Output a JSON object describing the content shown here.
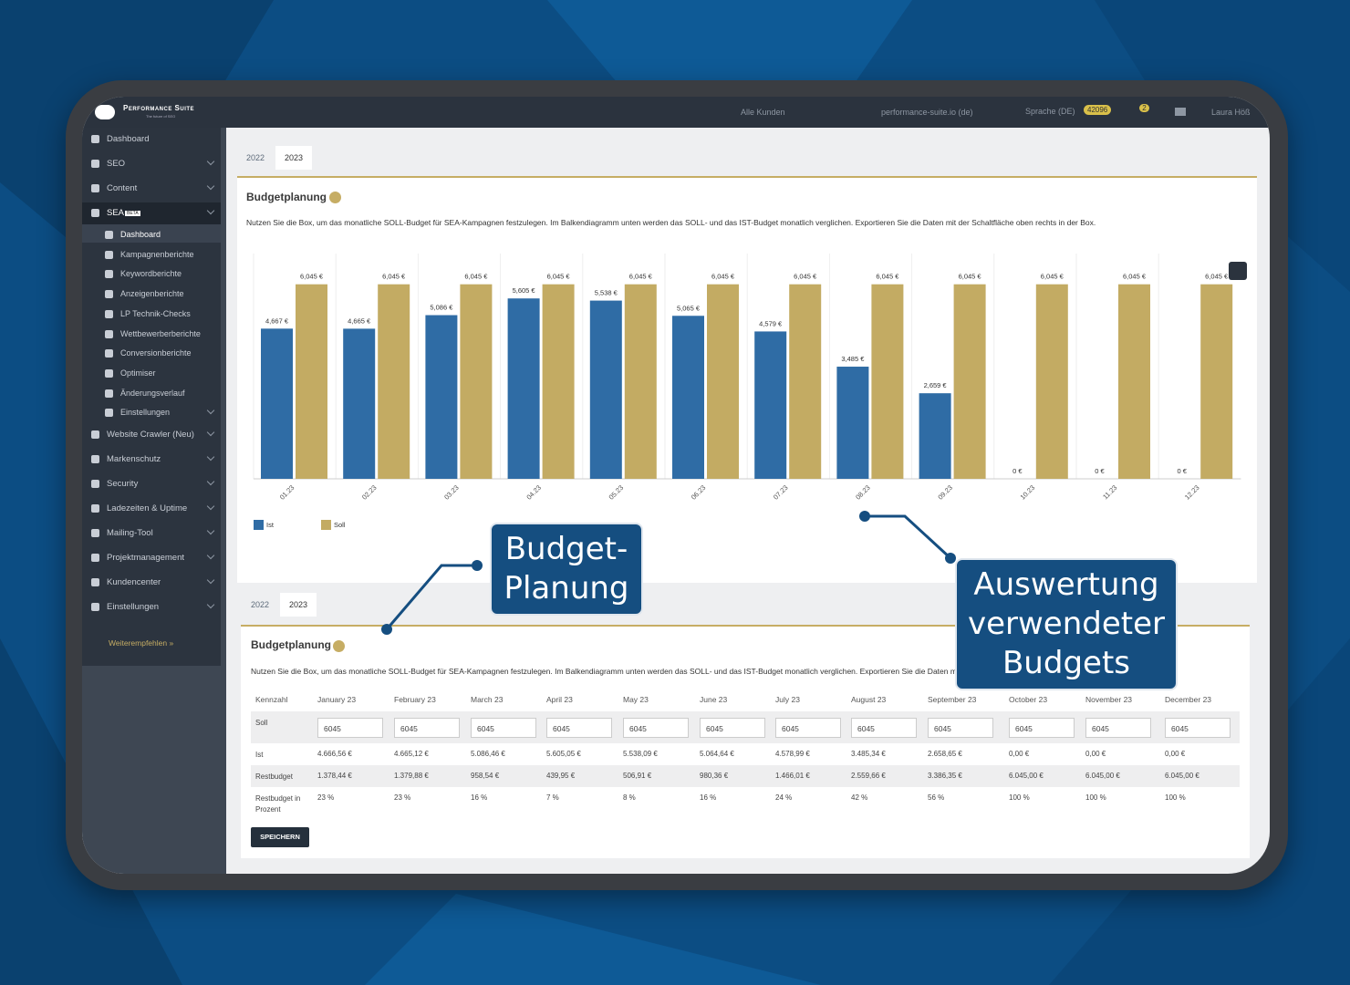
{
  "topbar": {
    "brand": "Performance Suite",
    "tagline": "The future of SEO",
    "customer": "Alle Kunden",
    "domain": "performance-suite.io (de)",
    "language": "Sprache (DE)",
    "credits": "42096",
    "notifications": "2",
    "user": "Laura Höß"
  },
  "sidebar": {
    "main_items": [
      "Dashboard",
      "SEO",
      "Content",
      "SEA"
    ],
    "sea_badge": "BETA",
    "sub_items": [
      "Dashboard",
      "Kampagnenberichte",
      "Keywordberichte",
      "Anzeigenberichte",
      "LP Technik-Checks",
      "Wettbewerberberichte",
      "Conversionberichte",
      "Optimiser",
      "Änderungsverlauf",
      "Einstellungen"
    ],
    "more_items": [
      "Website Crawler (Neu)",
      "Markenschutz",
      "Security",
      "Ladezeiten & Uptime",
      "Mailing-Tool",
      "Projektmanagement",
      "Kundencenter",
      "Einstellungen"
    ],
    "referral": "Weiterempfehlen »"
  },
  "chart_section": {
    "tabs": [
      "2022",
      "2023"
    ],
    "title": "Budgetplanung",
    "description": "Nutzen Sie die Box, um das monatliche SOLL-Budget für SEA-Kampagnen festzulegen. Im Balkendiagramm unten werden das SOLL- und das IST-Budget monatlich verglichen. Exportieren Sie die Daten mit der Schaltfläche oben rechts in der Box."
  },
  "chart_data": {
    "type": "bar",
    "categories": [
      "01.23",
      "02.23",
      "03.23",
      "04.23",
      "05.23",
      "06.23",
      "07.23",
      "08.23",
      "09.23",
      "10.23",
      "11.23",
      "12.23"
    ],
    "series": [
      {
        "name": "Ist",
        "color": "#2f6ca5",
        "values": [
          4667,
          4665,
          5086,
          5605,
          5538,
          5065,
          4579,
          3485,
          2659,
          0,
          0,
          0
        ],
        "value_labels": [
          "4,667 €",
          "4,665 €",
          "5,086 €",
          "5,605 €",
          "5,538 €",
          "5,065 €",
          "4,579 €",
          "3,485 €",
          "2,659 €",
          "0 €",
          "0 €",
          "0 €"
        ]
      },
      {
        "name": "Soll",
        "color": "#c3ab63",
        "values": [
          6045,
          6045,
          6045,
          6045,
          6045,
          6045,
          6045,
          6045,
          6045,
          6045,
          6045,
          6045
        ],
        "value_labels": [
          "6,045 €",
          "6,045 €",
          "6,045 €",
          "6,045 €",
          "6,045 €",
          "6,045 €",
          "6,045 €",
          "6,045 €",
          "6,045 €",
          "6,045 €",
          "6,045 €",
          "6,045 €"
        ]
      }
    ],
    "ylim": [
      0,
      7000
    ],
    "legend": "bottom-left"
  },
  "table_section": {
    "tabs": [
      "2022",
      "2023"
    ],
    "title": "Budgetplanung",
    "description": "Nutzen Sie die Box, um das monatliche SOLL-Budget für SEA-Kampagnen festzulegen. Im Balkendiagramm unten werden das SOLL- und das IST-Budget monatlich verglichen. Exportieren Sie die Daten mit der Schaltfläche oben rechts in der Box.",
    "table": {
      "header": [
        "Kennzahl",
        "January 23",
        "February 23",
        "March 23",
        "April 23",
        "May 23",
        "June 23",
        "July 23",
        "August 23",
        "September 23",
        "October 23",
        "November 23",
        "December 23"
      ],
      "rows": [
        [
          "Soll",
          "6045",
          "6045",
          "6045",
          "6045",
          "6045",
          "6045",
          "6045",
          "6045",
          "6045",
          "6045",
          "6045",
          "6045"
        ],
        [
          "Ist",
          "4.666,56 €",
          "4.665,12 €",
          "5.086,46 €",
          "5.605,05 €",
          "5.538,09 €",
          "5.064,64 €",
          "4.578,99 €",
          "3.485,34 €",
          "2.658,65 €",
          "0,00 €",
          "0,00 €",
          "0,00 €"
        ],
        [
          "Restbudget",
          "1.378,44 €",
          "1.379,88 €",
          "958,54 €",
          "439,95 €",
          "506,91 €",
          "980,36 €",
          "1.466,01 €",
          "2.559,66 €",
          "3.386,35 €",
          "6.045,00 €",
          "6.045,00 €",
          "6.045,00 €"
        ],
        [
          "Restbudget in Prozent",
          "23 %",
          "23 %",
          "16 %",
          "7 %",
          "8 %",
          "16 %",
          "24 %",
          "42 %",
          "56 %",
          "100 %",
          "100 %",
          "100 %"
        ]
      ]
    },
    "button": "SPEICHERN"
  },
  "callouts": [
    "Budget-Planung",
    "Auswertung verwendeter Budgets"
  ]
}
